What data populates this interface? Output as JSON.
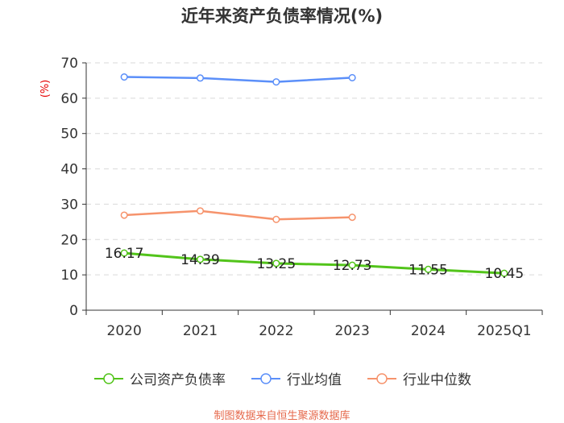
{
  "title": "近年来资产负债率情况(%)",
  "source": "制图数据来自恒生聚源数据库",
  "colors": {
    "company": "#52c41a",
    "industry_avg": "#5b8ff9",
    "industry_median": "#f6936c",
    "source": "#e6694c",
    "ylabel": "#e60000"
  },
  "chart_data": {
    "type": "line",
    "title": "近年来资产负债率情况(%)",
    "xlabel": "",
    "ylabel": "(%)",
    "ylim": [
      0,
      70
    ],
    "yticks": [
      "0",
      "10",
      "20",
      "30",
      "40",
      "50",
      "60",
      "70"
    ],
    "categories": [
      "2020",
      "2021",
      "2022",
      "2023",
      "2024",
      "2025Q1"
    ],
    "series": [
      {
        "name": "公司资产负债率",
        "color": "#52c41a",
        "values": [
          16.17,
          14.39,
          13.25,
          12.73,
          11.55,
          10.45
        ],
        "labels": [
          "16.17",
          "14.39",
          "13.25",
          "12.73",
          "11.55",
          "10.45"
        ]
      },
      {
        "name": "行业均值",
        "color": "#5b8ff9",
        "values": [
          66.0,
          65.7,
          64.6,
          65.8,
          null,
          null
        ]
      },
      {
        "name": "行业中位数",
        "color": "#f6936c",
        "values": [
          26.9,
          28.1,
          25.7,
          26.3,
          null,
          null
        ]
      }
    ],
    "legend_position": "bottom",
    "grid": true
  }
}
